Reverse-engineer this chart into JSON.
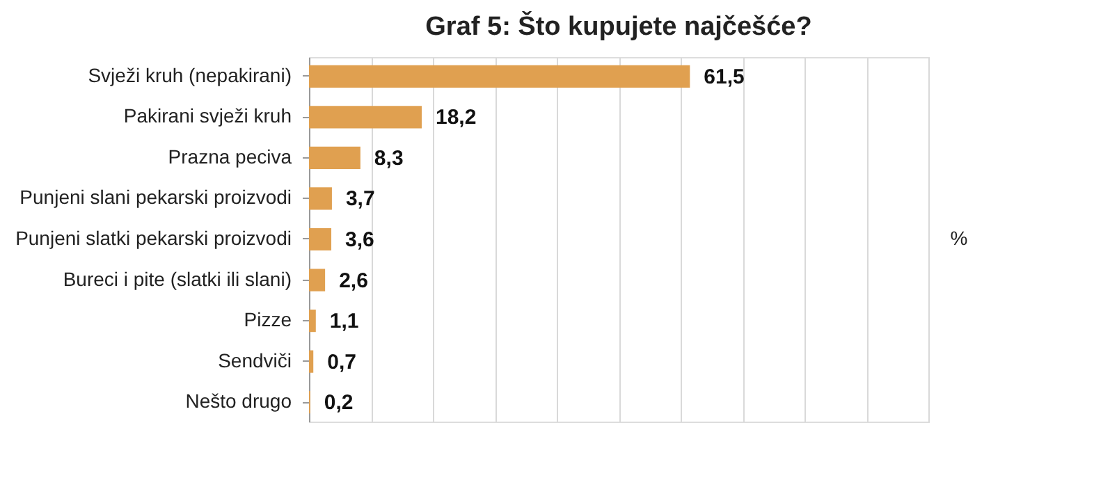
{
  "chart_data": {
    "type": "bar",
    "orientation": "horizontal",
    "title": "Graf 5: Što kupujete najčešće?",
    "xlabel": "%",
    "categories": [
      "Svježi kruh (nepakirani)",
      "Pakirani svježi kruh",
      "Prazna peciva",
      "Punjeni slani pekarski proizvodi",
      "Punjeni slatki pekarski proizvodi",
      "Bureci i pite (slatki ili slani)",
      "Pizze",
      "Sendviči",
      "Nešto drugo"
    ],
    "values": [
      61.5,
      18.2,
      8.3,
      3.7,
      3.6,
      2.6,
      1.1,
      0.7,
      0.2
    ],
    "value_labels": [
      "61,5",
      "18,2",
      "8,3",
      "3,7",
      "3,6",
      "2,6",
      "1,1",
      "0,7",
      "0,2"
    ],
    "color": "#e0a050",
    "xlim": [
      0,
      100
    ],
    "xticks": [
      {
        "value": 0,
        "label": null
      },
      {
        "value": 10,
        "label": null
      },
      {
        "value": 20,
        "label": null
      },
      {
        "value": 30,
        "label": null
      },
      {
        "value": 40,
        "label": null
      },
      {
        "value": 50,
        "label": null
      },
      {
        "value": 60,
        "label": null
      },
      {
        "value": 70,
        "label": null
      },
      {
        "value": 80,
        "label": null
      },
      {
        "value": 90,
        "label": null
      },
      {
        "value": 100,
        "label": null
      }
    ],
    "grid": "x",
    "tick_labels": "y"
  }
}
